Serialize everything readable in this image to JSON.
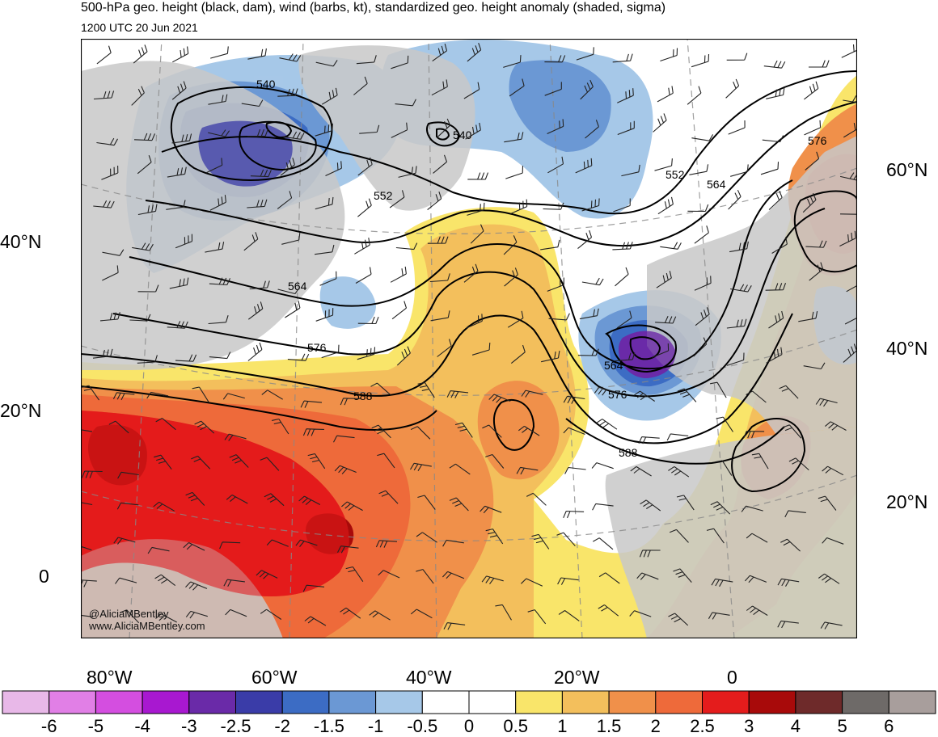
{
  "header": {
    "title": "500-hPa geo. height (black, dam), wind (barbs, kt), standardized geo. height anomaly (shaded, sigma)",
    "valid_time": "1200 UTC 20 Jun 2021"
  },
  "axes": {
    "left_lat_labels": [
      "40°N",
      "20°N",
      "0"
    ],
    "right_lat_labels": [
      "60°N",
      "40°N",
      "20°N"
    ],
    "bottom_lon_labels": [
      "80°W",
      "60°W",
      "40°W",
      "20°W",
      "0"
    ]
  },
  "contours": {
    "height_labels": [
      "540",
      "540",
      "552",
      "552",
      "564",
      "564",
      "564",
      "576",
      "576",
      "576",
      "588",
      "588"
    ]
  },
  "credit": {
    "handle": "@AliciaMBentley",
    "website": "www.AliciaMBentley.com"
  },
  "colorbar": {
    "tick_labels": [
      "-6",
      "-5",
      "-4",
      "-3",
      "-2.5",
      "-2",
      "-1.5",
      "-1",
      "-0.5",
      "0",
      "0.5",
      "1",
      "1.5",
      "2",
      "2.5",
      "3",
      "4",
      "5",
      "6"
    ],
    "colors": [
      "#e8b8e8",
      "#e17fe6",
      "#d44ee0",
      "#a818d0",
      "#6a2aa8",
      "#3a3ca8",
      "#3c6cc4",
      "#6b98d4",
      "#a6c8e8",
      "#ffffff",
      "#ffffff",
      "#f9e56a",
      "#f3bf5c",
      "#f0904a",
      "#ee6a3a",
      "#e41c1c",
      "#a80a0a",
      "#6e2a2a",
      "#6e6a68",
      "#a89e9c"
    ]
  },
  "colors": {
    "land": "#c8c8c8",
    "frame": "#000000"
  }
}
